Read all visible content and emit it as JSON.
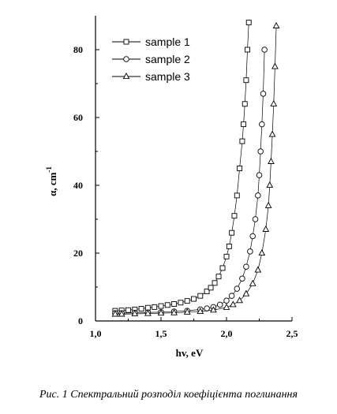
{
  "caption": "Рис. 1 Спектральний розподіл коефіцієнта поглинання",
  "chart_data": {
    "type": "scatter",
    "xlabel": "hv, eV",
    "ylabel": "α, cm",
    "ylabel_superscript": "-1",
    "xlim": [
      1.0,
      2.5
    ],
    "ylim": [
      0,
      90
    ],
    "x_ticks": [
      1.0,
      1.5,
      2.0,
      2.5
    ],
    "x_tick_labels": [
      "1,0",
      "1,5",
      "2,0",
      "2,5"
    ],
    "y_ticks": [
      0,
      20,
      40,
      60,
      80
    ],
    "y_tick_labels": [
      "0",
      "20",
      "40",
      "60",
      "80"
    ],
    "grid": false,
    "legend_position": "top-left",
    "series": [
      {
        "name": "sample 1",
        "marker": "square",
        "x": [
          1.15,
          1.2,
          1.25,
          1.3,
          1.35,
          1.4,
          1.45,
          1.5,
          1.55,
          1.6,
          1.65,
          1.7,
          1.75,
          1.8,
          1.85,
          1.88,
          1.91,
          1.94,
          1.97,
          2.0,
          2.02,
          2.04,
          2.06,
          2.08,
          2.1,
          2.12,
          2.13,
          2.14,
          2.15,
          2.16,
          2.17
        ],
        "y": [
          3.0,
          3.1,
          3.2,
          3.4,
          3.6,
          3.9,
          4.1,
          4.4,
          4.7,
          5.0,
          5.4,
          5.9,
          6.5,
          7.4,
          8.7,
          9.8,
          11.2,
          13.1,
          15.6,
          19.0,
          22.0,
          26.0,
          31.0,
          37.0,
          45.0,
          53.0,
          58.0,
          64.0,
          71.0,
          80.0,
          88.0
        ]
      },
      {
        "name": "sample 2",
        "marker": "circle",
        "x": [
          1.15,
          1.2,
          1.3,
          1.4,
          1.5,
          1.6,
          1.7,
          1.8,
          1.85,
          1.9,
          1.95,
          2.0,
          2.04,
          2.08,
          2.12,
          2.15,
          2.18,
          2.2,
          2.22,
          2.24,
          2.25,
          2.26,
          2.27,
          2.28,
          2.29
        ],
        "y": [
          2.3,
          2.3,
          2.4,
          2.5,
          2.6,
          2.8,
          3.0,
          3.4,
          3.7,
          4.1,
          4.8,
          6.0,
          7.4,
          9.5,
          12.5,
          16.0,
          20.5,
          25.0,
          30.0,
          37.0,
          43.0,
          50.0,
          58.0,
          67.0,
          80.0
        ]
      },
      {
        "name": "sample 3",
        "marker": "triangle",
        "x": [
          1.15,
          1.2,
          1.3,
          1.4,
          1.5,
          1.6,
          1.7,
          1.8,
          1.9,
          2.0,
          2.05,
          2.1,
          2.15,
          2.2,
          2.24,
          2.27,
          2.3,
          2.32,
          2.33,
          2.34,
          2.35,
          2.36,
          2.37,
          2.38
        ],
        "y": [
          2.0,
          2.0,
          2.1,
          2.2,
          2.3,
          2.4,
          2.6,
          2.8,
          3.2,
          4.0,
          4.8,
          6.0,
          8.0,
          11.0,
          15.0,
          20.0,
          27.0,
          34.0,
          40.0,
          47.0,
          55.0,
          64.0,
          75.0,
          87.0
        ]
      }
    ]
  }
}
